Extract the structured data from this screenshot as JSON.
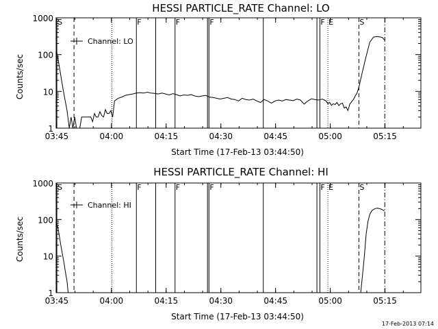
{
  "chart_data": [
    {
      "type": "line",
      "title": "HESSI PARTICLE_RATE Channel: LO",
      "xlabel": "Start Time (17-Feb-13 03:44:50)",
      "ylabel": "Counts/sec",
      "ylim": [
        1,
        1000
      ],
      "yscale": "log",
      "x_range_minutes": [
        0,
        100
      ],
      "x_ticks": [
        {
          "label": "03:45",
          "minutes": 0.17
        },
        {
          "label": "04:00",
          "minutes": 15.17
        },
        {
          "label": "04:15",
          "minutes": 30.17
        },
        {
          "label": "04:30",
          "minutes": 45.17
        },
        {
          "label": "04:45",
          "minutes": 60.17
        },
        {
          "label": "05:00",
          "minutes": 75.17
        },
        {
          "label": "05:15",
          "minutes": 90.17
        }
      ],
      "y_ticks": [
        {
          "label": "1",
          "value": 1
        },
        {
          "label": "10",
          "value": 10
        },
        {
          "label": "100",
          "value": 100
        },
        {
          "label": "1000",
          "value": 1000
        }
      ],
      "legend": {
        "label": "Channel: LO",
        "placement": "top-left"
      },
      "markers": [
        {
          "minutes": 0.2,
          "style": "solid",
          "label": "S"
        },
        {
          "minutes": 4.9,
          "style": "dashed",
          "label": ""
        },
        {
          "minutes": 15.3,
          "style": "dotted",
          "label": ""
        },
        {
          "minutes": 22.0,
          "style": "solid",
          "label": "F"
        },
        {
          "minutes": 27.3,
          "style": "solid",
          "label": ""
        },
        {
          "minutes": 32.6,
          "style": "solid",
          "label": "F"
        },
        {
          "minutes": 41.5,
          "style": "solid",
          "label": ""
        },
        {
          "minutes": 41.9,
          "style": "solid",
          "label": "F"
        },
        {
          "minutes": 56.8,
          "style": "solid",
          "label": ""
        },
        {
          "minutes": 71.5,
          "style": "solid",
          "label": ""
        },
        {
          "minutes": 72.3,
          "style": "solid",
          "label": "F"
        },
        {
          "minutes": 74.5,
          "style": "dotted",
          "label": "E"
        },
        {
          "minutes": 83.0,
          "style": "dashed",
          "label": "S"
        },
        {
          "minutes": 90.1,
          "style": "dashdot",
          "label": ""
        }
      ],
      "series": [
        {
          "name": "Channel: LO",
          "x": [
            0,
            1,
            2,
            3,
            3.6,
            4.1,
            4.6,
            5.1,
            5.6,
            6,
            6.5,
            7,
            7.5,
            8,
            8.5,
            9,
            9.5,
            10,
            10.5,
            11,
            11.5,
            12,
            12.5,
            13,
            13.5,
            14,
            14.5,
            15,
            15.5,
            16,
            17,
            18,
            19,
            20,
            21,
            22,
            23,
            24,
            25,
            26,
            27,
            28,
            29,
            30,
            31,
            32,
            33,
            34,
            35,
            36,
            37,
            38,
            39,
            40,
            41,
            42,
            43,
            44,
            45,
            46,
            47,
            48,
            49,
            50,
            51,
            52,
            53,
            54,
            55,
            56,
            57,
            58,
            59,
            60,
            61,
            62,
            63,
            64,
            65,
            66,
            67,
            68,
            69,
            70,
            71,
            72,
            73,
            74,
            74.5,
            75,
            75.5,
            76,
            76.5,
            77,
            77.5,
            78,
            78.5,
            79,
            79.5,
            80,
            80.5,
            81,
            81.5,
            82,
            82.5,
            83,
            84,
            85,
            86,
            87,
            88,
            89,
            89.5,
            90
          ],
          "values": [
            150,
            40,
            10,
            3,
            1,
            2,
            1,
            2,
            1,
            1,
            1,
            2,
            2,
            2,
            2,
            2,
            2,
            1.5,
            2.5,
            2,
            2,
            2.8,
            2.2,
            2,
            3.2,
            2.5,
            2.5,
            3,
            2,
            5.5,
            6.5,
            7,
            7.8,
            8.2,
            8.5,
            9,
            9.2,
            9,
            9.5,
            9,
            8.8,
            8.5,
            9,
            8.5,
            8,
            8.7,
            8.2,
            7.5,
            8,
            7.8,
            8.2,
            7.5,
            7.2,
            7.5,
            7.8,
            7,
            6.8,
            6.5,
            6.2,
            6.5,
            6.8,
            6.2,
            6,
            5.5,
            6.5,
            6,
            5.8,
            6.2,
            5.5,
            5,
            6,
            5.5,
            4.8,
            5.5,
            5.8,
            5.5,
            6,
            5.8,
            5.6,
            6.2,
            5.8,
            4.5,
            5.5,
            6.3,
            6,
            5.8,
            6.2,
            5.5,
            4.6,
            5,
            4.2,
            4.6,
            4.4,
            5,
            4.1,
            4.6,
            4.8,
            3.5,
            3.8,
            3,
            4.5,
            5.2,
            6,
            7.5,
            9,
            13,
            35,
            90,
            220,
            300,
            310,
            300,
            290,
            250
          ]
        }
      ]
    },
    {
      "type": "line",
      "title": "HESSI PARTICLE_RATE Channel: HI",
      "xlabel": "Start Time (17-Feb-13 03:44:50)",
      "ylabel": "Counts/sec",
      "ylim": [
        1,
        1000
      ],
      "yscale": "log",
      "x_range_minutes": [
        0,
        100
      ],
      "x_ticks": [
        {
          "label": "03:45",
          "minutes": 0.17
        },
        {
          "label": "04:00",
          "minutes": 15.17
        },
        {
          "label": "04:15",
          "minutes": 30.17
        },
        {
          "label": "04:30",
          "minutes": 45.17
        },
        {
          "label": "04:45",
          "minutes": 60.17
        },
        {
          "label": "05:00",
          "minutes": 75.17
        },
        {
          "label": "05:15",
          "minutes": 90.17
        }
      ],
      "y_ticks": [
        {
          "label": "1",
          "value": 1
        },
        {
          "label": "10",
          "value": 10
        },
        {
          "label": "100",
          "value": 100
        },
        {
          "label": "1000",
          "value": 1000
        }
      ],
      "legend": {
        "label": "Channel: HI",
        "placement": "top-left"
      },
      "markers": [
        {
          "minutes": 0.2,
          "style": "solid",
          "label": "S"
        },
        {
          "minutes": 4.9,
          "style": "dashed",
          "label": ""
        },
        {
          "minutes": 15.3,
          "style": "dotted",
          "label": ""
        },
        {
          "minutes": 22.0,
          "style": "solid",
          "label": "F"
        },
        {
          "minutes": 27.3,
          "style": "solid",
          "label": ""
        },
        {
          "minutes": 32.6,
          "style": "solid",
          "label": "F"
        },
        {
          "minutes": 41.5,
          "style": "solid",
          "label": ""
        },
        {
          "minutes": 41.9,
          "style": "solid",
          "label": "F"
        },
        {
          "minutes": 56.8,
          "style": "solid",
          "label": ""
        },
        {
          "minutes": 71.5,
          "style": "solid",
          "label": ""
        },
        {
          "minutes": 72.3,
          "style": "solid",
          "label": "F"
        },
        {
          "minutes": 74.5,
          "style": "dotted",
          "label": "E"
        },
        {
          "minutes": 83.0,
          "style": "dashed",
          "label": "S"
        },
        {
          "minutes": 90.1,
          "style": "dashdot",
          "label": ""
        }
      ],
      "series": [
        {
          "name": "Channel: HI",
          "x": [
            0,
            0.5,
            1,
            1.5,
            2,
            2.5,
            3,
            3.3,
            83.5,
            84,
            84.5,
            85,
            85.5,
            86,
            86.5,
            87,
            87.5,
            88,
            88.5,
            89,
            89.5,
            90
          ],
          "values": [
            90,
            60,
            30,
            15,
            8,
            4,
            2,
            1,
            1,
            3,
            10,
            40,
            90,
            140,
            170,
            190,
            200,
            205,
            200,
            195,
            185,
            170
          ]
        }
      ]
    }
  ],
  "footer": {
    "stamp": "17-Feb-2013 07:14"
  }
}
